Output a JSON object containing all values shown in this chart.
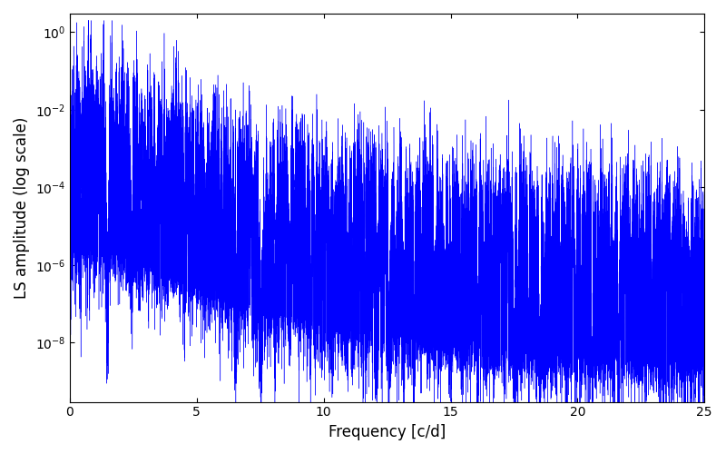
{
  "title": "",
  "xlabel": "Frequency [c/d]",
  "ylabel": "LS amplitude (log scale)",
  "line_color": "#0000ff",
  "xlim": [
    0,
    25
  ],
  "ylim": [
    3e-10,
    3.0
  ],
  "freq_min": 0.001,
  "freq_max": 25.0,
  "n_points": 20000,
  "figsize": [
    8.0,
    5.0
  ],
  "dpi": 100,
  "background_color": "#ffffff",
  "xticks": [
    0,
    5,
    10,
    15,
    20,
    25
  ]
}
